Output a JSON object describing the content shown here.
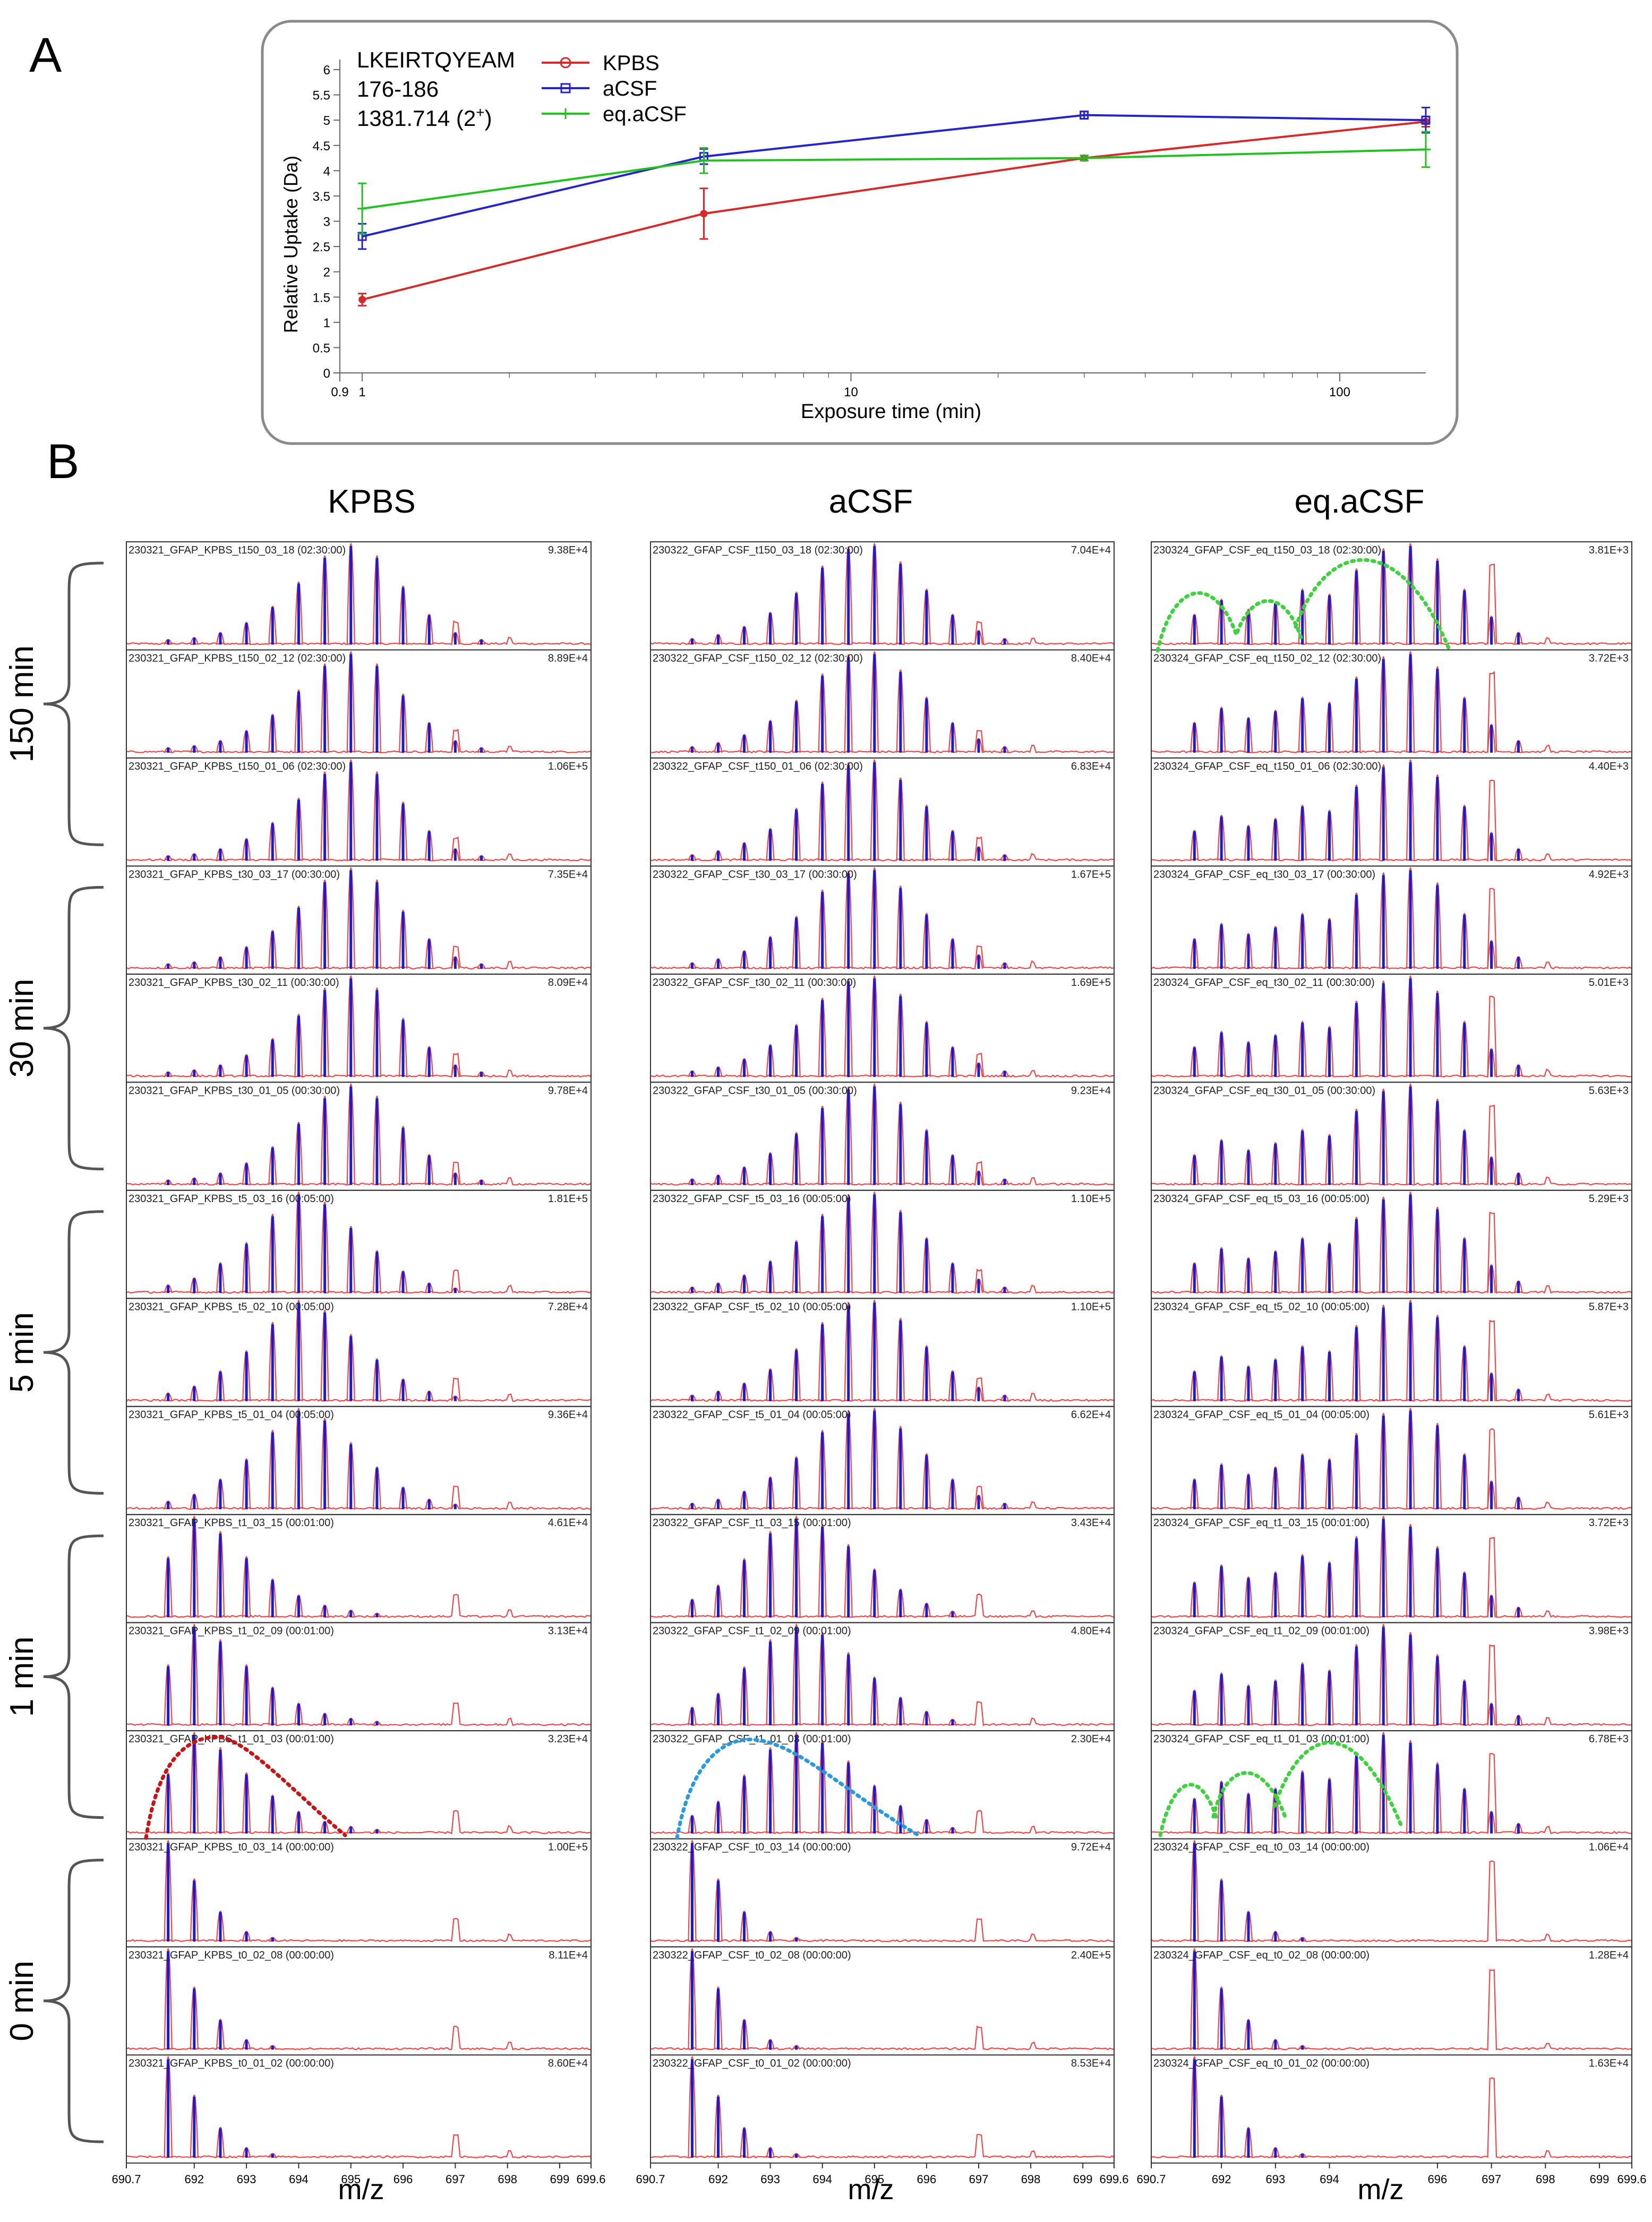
{
  "panel_labels": {
    "a": "A",
    "b": "B"
  },
  "chart_data": [
    {
      "type": "line",
      "peptide": {
        "sequence": "LKEIRTQYEAM",
        "residues": "176-186",
        "mz_base": "1381.714 (2",
        "mz_sup": "+",
        "mz_close": ")"
      },
      "xlabel": "Exposure time (min)",
      "ylabel": "Relative Uptake (Da)",
      "x_scale": "log",
      "xlim": [
        0.9,
        150
      ],
      "ylim": [
        0,
        6.2
      ],
      "x_ticks": [
        {
          "v": 0.9,
          "label": "0.9"
        },
        {
          "v": 1,
          "label": "1"
        },
        {
          "v": 10,
          "label": "10"
        },
        {
          "v": 100,
          "label": "100"
        }
      ],
      "y_ticks": [
        {
          "v": 0,
          "label": "0"
        },
        {
          "v": 0.5,
          "label": "0.5"
        },
        {
          "v": 1,
          "label": "1"
        },
        {
          "v": 1.5,
          "label": "1.5"
        },
        {
          "v": 2,
          "label": "2"
        },
        {
          "v": 2.5,
          "label": "2.5"
        },
        {
          "v": 3,
          "label": "3"
        },
        {
          "v": 3.5,
          "label": "3.5"
        },
        {
          "v": 4,
          "label": "4"
        },
        {
          "v": 4.5,
          "label": "4.5"
        },
        {
          "v": 5,
          "label": "5"
        },
        {
          "v": 5.5,
          "label": "5.5"
        },
        {
          "v": 6,
          "label": "6"
        }
      ],
      "legend_position": "top-left",
      "series": [
        {
          "name": "KPBS",
          "color": "#d42a2a",
          "marker": "circle",
          "x": [
            1,
            5,
            30,
            150
          ],
          "y": [
            1.45,
            3.15,
            4.25,
            4.97
          ],
          "err": [
            0.12,
            0.5,
            0.05,
            0.1
          ]
        },
        {
          "name": "aCSF",
          "color": "#2424c8",
          "marker": "square",
          "x": [
            1,
            5,
            30,
            150
          ],
          "y": [
            2.7,
            4.28,
            5.1,
            5.0
          ],
          "err": [
            0.25,
            0.15,
            0.07,
            0.25
          ]
        },
        {
          "name": "eq.aCSF",
          "color": "#22c022",
          "marker": "cross",
          "x": [
            1,
            5,
            30,
            150
          ],
          "y": [
            3.25,
            4.2,
            4.25,
            4.42
          ],
          "err": [
            0.5,
            0.25,
            0.05,
            0.35
          ]
        }
      ]
    },
    {
      "type": "spectra_grid",
      "columns": [
        {
          "title": "KPBS",
          "x_ticks": [
            "690.7",
            "692",
            "693",
            "694",
            "695",
            "696",
            "697",
            "698",
            "699",
            "699.6"
          ]
        },
        {
          "title": "aCSF",
          "x_ticks": [
            "690.7",
            "692",
            "693",
            "694",
            "695",
            "696",
            "697",
            "698",
            "699",
            "699.6"
          ]
        },
        {
          "title": "eq.aCSF",
          "x_ticks": [
            "690.7",
            "692",
            "693",
            "694",
            "696",
            "697",
            "698",
            "699",
            "699.6"
          ]
        }
      ],
      "xlabel": "m/z",
      "time_groups": [
        "150 min",
        "30 min",
        "5 min",
        "1 min",
        "0 min"
      ],
      "spectra": [
        [
          "230321_GFAP_KPBS_t150_03_18 (02:30:00)",
          "230322_GFAP_CSF_t150_03_18 (02:30:00)",
          "230324_GFAP_CSF_eq_t150_03_18 (02:30:00)"
        ],
        [
          "230321_GFAP_KPBS_t150_02_12 (02:30:00)",
          "230322_GFAP_CSF_t150_02_12 (02:30:00)",
          "230324_GFAP_CSF_eq_t150_02_12 (02:30:00)"
        ],
        [
          "230321_GFAP_KPBS_t150_01_06 (02:30:00)",
          "230322_GFAP_CSF_t150_01_06 (02:30:00)",
          "230324_GFAP_CSF_eq_t150_01_06 (02:30:00)"
        ],
        [
          "230321_GFAP_KPBS_t30_03_17 (00:30:00)",
          "230322_GFAP_CSF_t30_03_17 (00:30:00)",
          "230324_GFAP_CSF_eq_t30_03_17 (00:30:00)"
        ],
        [
          "230321_GFAP_KPBS_t30_02_11 (00:30:00)",
          "230322_GFAP_CSF_t30_02_11 (00:30:00)",
          "230324_GFAP_CSF_eq_t30_02_11 (00:30:00)"
        ],
        [
          "230321_GFAP_KPBS_t30_01_05 (00:30:00)",
          "230322_GFAP_CSF_t30_01_05 (00:30:00)",
          "230324_GFAP_CSF_eq_t30_01_05 (00:30:00)"
        ],
        [
          "230321_GFAP_KPBS_t5_03_16 (00:05:00)",
          "230322_GFAP_CSF_t5_03_16 (00:05:00)",
          "230324_GFAP_CSF_eq_t5_03_16 (00:05:00)"
        ],
        [
          "230321_GFAP_KPBS_t5_02_10 (00:05:00)",
          "230322_GFAP_CSF_t5_02_10 (00:05:00)",
          "230324_GFAP_CSF_eq_t5_02_10 (00:05:00)"
        ],
        [
          "230321_GFAP_KPBS_t5_01_04 (00:05:00)",
          "230322_GFAP_CSF_t5_01_04 (00:05:00)",
          "230324_GFAP_CSF_eq_t5_01_04 (00:05:00)"
        ],
        [
          "230321_GFAP_KPBS_t1_03_15 (00:01:00)",
          "230322_GFAP_CSF_t1_03_15 (00:01:00)",
          "230324_GFAP_CSF_eq_t1_03_15 (00:01:00)"
        ],
        [
          "230321_GFAP_KPBS_t1_02_09 (00:01:00)",
          "230322_GFAP_CSF_t1_02_09 (00:01:00)",
          "230324_GFAP_CSF_eq_t1_02_09 (00:01:00)"
        ],
        [
          "230321_GFAP_KPBS_t1_01_03 (00:01:00)",
          "230322_GFAP_CSF_t1_01_03 (00:01:00)",
          "230324_GFAP_CSF_eq_t1_01_03 (00:01:00)"
        ],
        [
          "230321_GFAP_KPBS_t0_03_14 (00:00:00)",
          "230322_GFAP_CSF_t0_03_14 (00:00:00)",
          "230324_GFAP_CSF_eq_t0_03_14 (00:00:00)"
        ],
        [
          "230321_GFAP_KPBS_t0_02_08 (00:00:00)",
          "230322_GFAP_CSF_t0_02_08 (00:00:00)",
          "230324_GFAP_CSF_eq_t0_02_08 (00:00:00)"
        ],
        [
          "230321_GFAP_KPBS_t0_01_02 (00:00:00)",
          "230322_GFAP_CSF_t0_01_02 (00:00:00)",
          "230324_GFAP_CSF_eq_t0_01_02 (00:00:00)"
        ]
      ],
      "intensities": [
        [
          "9.38E+4",
          "7.04E+4",
          "3.81E+3"
        ],
        [
          "8.89E+4",
          "8.40E+4",
          "3.72E+3"
        ],
        [
          "1.06E+5",
          "6.83E+4",
          "4.40E+3"
        ],
        [
          "7.35E+4",
          "1.67E+5",
          "4.92E+3"
        ],
        [
          "8.09E+4",
          "1.69E+5",
          "5.01E+3"
        ],
        [
          "9.78E+4",
          "9.23E+4",
          "5.63E+3"
        ],
        [
          "1.81E+5",
          "1.10E+5",
          "5.29E+3"
        ],
        [
          "7.28E+4",
          "1.10E+5",
          "5.87E+3"
        ],
        [
          "9.36E+4",
          "6.62E+4",
          "5.61E+3"
        ],
        [
          "4.61E+4",
          "3.43E+4",
          "3.72E+3"
        ],
        [
          "3.13E+4",
          "4.80E+4",
          "3.98E+3"
        ],
        [
          "3.23E+4",
          "2.30E+4",
          "6.78E+3"
        ],
        [
          "1.00E+5",
          "9.72E+4",
          "1.06E+4"
        ],
        [
          "8.11E+4",
          "2.40E+5",
          "1.28E+4"
        ],
        [
          "8.60E+4",
          "8.53E+4",
          "1.63E+4"
        ]
      ],
      "colors": {
        "raw_spectrum": "#f04848",
        "centroid": "#1a1ad0",
        "kpbs_envelope": "#c81414",
        "acsf_envelope": "#2a9ae0",
        "eq_envelope": "#3ed23e"
      }
    }
  ]
}
